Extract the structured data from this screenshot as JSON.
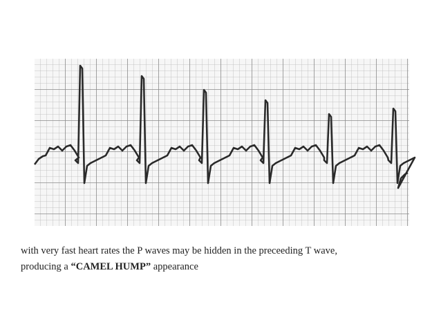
{
  "caption": {
    "line1": "with very fast heart rates the P waves may be hidden in the preceeding T wave,",
    "line2_start": "producing a ",
    "line2_bold": "“CAMEL HUMP”",
    "line2_end": " appearance"
  }
}
